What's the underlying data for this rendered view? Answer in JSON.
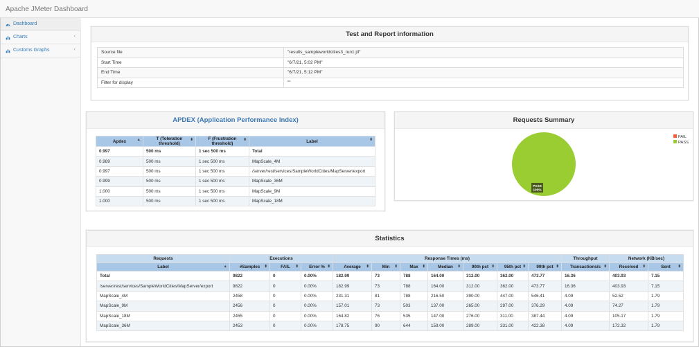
{
  "app": {
    "title": "Apache JMeter Dashboard"
  },
  "sidebar": {
    "items": [
      {
        "label": "Dashboard",
        "icon": "dashboard-icon"
      },
      {
        "label": "Charts",
        "icon": "bar-chart-icon"
      },
      {
        "label": "Customs Graphs",
        "icon": "bar-chart-icon"
      }
    ]
  },
  "info": {
    "title": "Test and Report information",
    "rows": [
      {
        "key": "Source file",
        "value": "\"results_sampleworldcities3_run1.jtl\""
      },
      {
        "key": "Start Time",
        "value": "\"6/7/21, 5:02 PM\""
      },
      {
        "key": "End Time",
        "value": "\"6/7/21, 5:12 PM\""
      },
      {
        "key": "Filter for display",
        "value": "\"\""
      }
    ]
  },
  "apdex": {
    "title": "APDEX (Application Performance Index)",
    "headers": [
      "Apdex",
      "T (Toleration threshold)",
      "F (Frustration threshold)",
      "Label"
    ],
    "rows": [
      [
        "0.997",
        "500 ms",
        "1 sec 500 ms",
        "Total"
      ],
      [
        "0.989",
        "500 ms",
        "1 sec 500 ms",
        "MapScale_4M"
      ],
      [
        "0.997",
        "500 ms",
        "1 sec 500 ms",
        "/server/rest/services/SampleWorldCities/MapServer/export"
      ],
      [
        "0.999",
        "500 ms",
        "1 sec 500 ms",
        "MapScale_36M"
      ],
      [
        "1.000",
        "500 ms",
        "1 sec 500 ms",
        "MapScale_9M"
      ],
      [
        "1.000",
        "500 ms",
        "1 sec 500 ms",
        "MapScale_18M"
      ]
    ]
  },
  "summary": {
    "title": "Requests Summary",
    "legend": [
      {
        "label": "FAIL",
        "color": "#f0643c"
      },
      {
        "label": "PASS",
        "color": "#9acd32"
      }
    ],
    "pie_label": "PASS",
    "pie_value": "100%"
  },
  "chart_data": {
    "type": "pie",
    "title": "Requests Summary",
    "categories": [
      "FAIL",
      "PASS"
    ],
    "values": [
      0,
      100
    ],
    "colors": [
      "#f0643c",
      "#9acd32"
    ],
    "legend": "top-right"
  },
  "statistics": {
    "title": "Statistics",
    "groups": [
      "Requests",
      "Executions",
      "Response Times (ms)",
      "Throughput",
      "Network (KB/sec)"
    ],
    "headers": [
      "Label",
      "#Samples",
      "FAIL",
      "Error %",
      "Average",
      "Min",
      "Max",
      "Median",
      "90th pct",
      "95th pct",
      "99th pct",
      "Transactions/s",
      "Received",
      "Sent"
    ],
    "rows": [
      [
        "Total",
        "9822",
        "0",
        "0.00%",
        "182.99",
        "73",
        "788",
        "164.00",
        "312.00",
        "362.00",
        "473.77",
        "16.36",
        "403.93",
        "7.15"
      ],
      [
        "/server/rest/services/SampleWorldCities/MapServer/export",
        "9822",
        "0",
        "0.00%",
        "182.99",
        "73",
        "788",
        "164.00",
        "312.00",
        "362.00",
        "473.77",
        "16.36",
        "403.93",
        "7.15"
      ],
      [
        "MapScale_4M",
        "2458",
        "0",
        "0.00%",
        "231.31",
        "81",
        "788",
        "216.50",
        "390.00",
        "447.00",
        "546.41",
        "4.09",
        "52.52",
        "1.79"
      ],
      [
        "MapScale_9M",
        "2456",
        "0",
        "0.00%",
        "157.01",
        "73",
        "503",
        "137.00",
        "265.00",
        "297.00",
        "376.29",
        "4.09",
        "74.27",
        "1.79"
      ],
      [
        "MapScale_18M",
        "2455",
        "0",
        "0.00%",
        "164.82",
        "76",
        "535",
        "147.00",
        "276.00",
        "311.00",
        "387.44",
        "4.09",
        "105.17",
        "1.79"
      ],
      [
        "MapScale_36M",
        "2453",
        "0",
        "0.00%",
        "178.75",
        "90",
        "644",
        "159.00",
        "289.00",
        "331.00",
        "422.38",
        "4.09",
        "172.32",
        "1.79"
      ]
    ]
  }
}
